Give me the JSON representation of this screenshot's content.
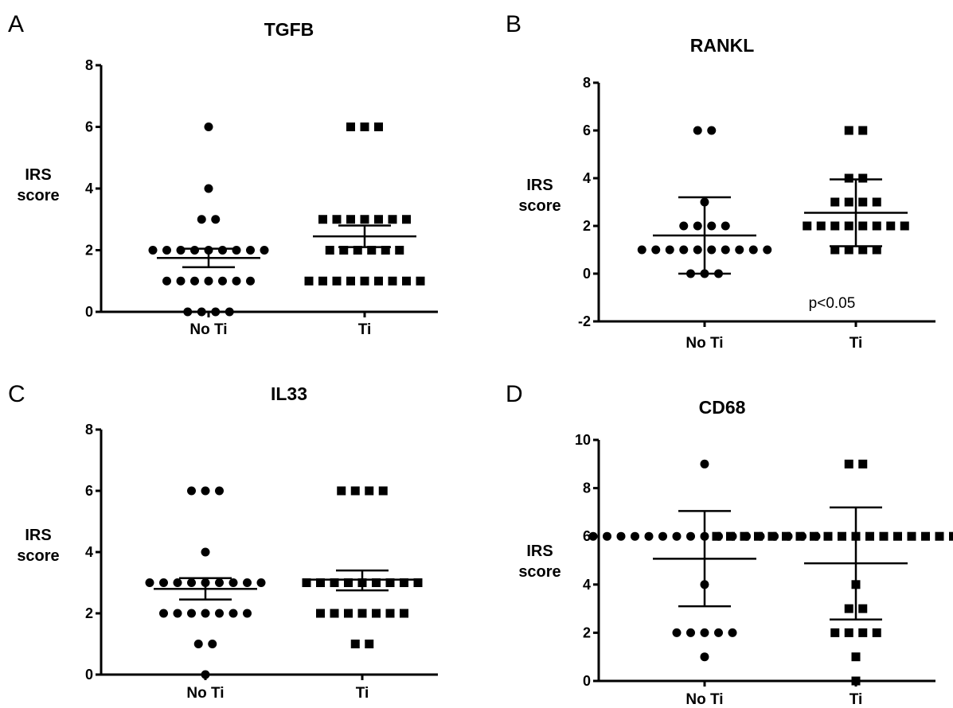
{
  "chart_data": [
    {
      "type": "scatter",
      "panel_letter": "A",
      "title": "TGFB",
      "ylabel": "IRS\nscore",
      "ylim": [
        0,
        8
      ],
      "yticks": [
        0,
        2,
        4,
        6,
        8
      ],
      "categories": [
        "No Ti",
        "Ti"
      ],
      "series": [
        {
          "marker": "circle",
          "values": [
            6,
            4,
            3,
            3,
            2,
            2,
            2,
            2,
            2,
            2,
            2,
            2,
            2,
            1,
            1,
            1,
            1,
            1,
            1,
            1,
            0,
            0,
            0,
            0
          ],
          "mean": 1.75,
          "err": [
            1.45,
            2.05
          ]
        },
        {
          "marker": "square",
          "values": [
            6,
            6,
            6,
            3,
            3,
            3,
            3,
            3,
            3,
            3,
            2,
            2,
            2,
            2,
            2,
            2,
            1,
            1,
            1,
            1,
            1,
            1,
            1,
            1,
            1
          ],
          "mean": 2.45,
          "err": [
            2.1,
            2.8
          ]
        }
      ],
      "annotation": ""
    },
    {
      "type": "scatter",
      "panel_letter": "B",
      "title": "RANKL",
      "ylabel": "IRS\nscore",
      "ylim": [
        -2,
        8
      ],
      "yticks": [
        -2,
        0,
        2,
        4,
        6,
        8
      ],
      "categories": [
        "No Ti",
        "Ti"
      ],
      "series": [
        {
          "marker": "circle",
          "values": [
            6,
            6,
            3,
            2,
            2,
            2,
            2,
            1,
            1,
            1,
            1,
            1,
            1,
            1,
            1,
            1,
            1,
            0,
            0,
            0
          ],
          "mean": 1.6,
          "err": [
            0,
            3.2
          ]
        },
        {
          "marker": "square",
          "values": [
            6,
            6,
            4,
            4,
            3,
            3,
            3,
            3,
            2,
            2,
            2,
            2,
            2,
            2,
            2,
            2,
            1,
            1,
            1,
            1
          ],
          "mean": 2.55,
          "err": [
            1.15,
            3.95
          ]
        }
      ],
      "annotation": "p<0.05"
    },
    {
      "type": "scatter",
      "panel_letter": "C",
      "title": "IL33",
      "ylabel": "IRS\nscore",
      "ylim": [
        0,
        8
      ],
      "yticks": [
        0,
        2,
        4,
        6,
        8
      ],
      "categories": [
        "No Ti",
        "Ti"
      ],
      "series": [
        {
          "marker": "circle",
          "values": [
            6,
            6,
            6,
            4,
            3,
            3,
            3,
            3,
            3,
            3,
            3,
            3,
            3,
            2,
            2,
            2,
            2,
            2,
            2,
            2,
            1,
            1,
            0
          ],
          "mean": 2.8,
          "err": [
            2.45,
            3.15
          ]
        },
        {
          "marker": "square",
          "values": [
            6,
            6,
            6,
            6,
            3,
            3,
            3,
            3,
            3,
            3,
            3,
            3,
            3,
            2,
            2,
            2,
            2,
            2,
            2,
            2,
            1,
            1
          ],
          "mean": 3.1,
          "err": [
            2.75,
            3.4
          ]
        }
      ],
      "annotation": ""
    },
    {
      "type": "scatter",
      "panel_letter": "D",
      "title": "CD68",
      "ylabel": "IRS\nscore",
      "ylim": [
        0,
        10
      ],
      "yticks": [
        0,
        2,
        4,
        6,
        8,
        10
      ],
      "categories": [
        "No Ti",
        "Ti"
      ],
      "series": [
        {
          "marker": "circle",
          "values": [
            9,
            6,
            6,
            6,
            6,
            6,
            6,
            6,
            6,
            6,
            6,
            6,
            6,
            6,
            6,
            6,
            6,
            6,
            4,
            2,
            2,
            2,
            2,
            2,
            1
          ],
          "mean": 5.07,
          "err": [
            3.1,
            7.05
          ]
        },
        {
          "marker": "square",
          "values": [
            9,
            9,
            6,
            6,
            6,
            6,
            6,
            6,
            6,
            6,
            6,
            6,
            6,
            6,
            6,
            6,
            6,
            6,
            6,
            6,
            6,
            6,
            6,
            4,
            3,
            3,
            2,
            2,
            2,
            2,
            1,
            0
          ],
          "mean": 4.88,
          "err": [
            2.55,
            7.2
          ]
        }
      ],
      "annotation": ""
    }
  ]
}
